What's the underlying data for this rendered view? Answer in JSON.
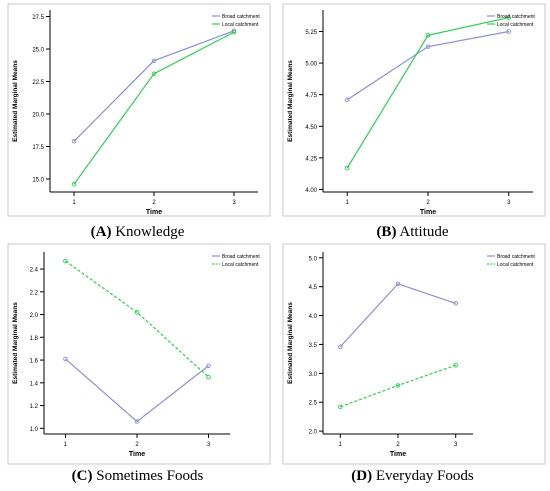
{
  "colors": {
    "broad": "#8a8fd6",
    "local": "#2ecf4f",
    "axis": "#000000",
    "frame": "#c8c8c8"
  },
  "captions": [
    {
      "letter": "(A)",
      "text": "Knowledge"
    },
    {
      "letter": "(B)",
      "text": "Attitude"
    },
    {
      "letter": "(C)",
      "text": "Sometimes Foods"
    },
    {
      "letter": "(D)",
      "text": "Everyday Foods"
    }
  ],
  "chart_data": [
    {
      "type": "line",
      "panel": "A",
      "xlabel": "Time",
      "ylabel": "Estimated Marginal Means",
      "x": [
        1,
        2,
        3
      ],
      "xlim": [
        0.7,
        3.3
      ],
      "ylim": [
        14.0,
        28.0
      ],
      "yticks": [
        "15.0",
        "17.5",
        "20.0",
        "22.5",
        "25.0",
        "27.5"
      ],
      "ytick_values": [
        15.0,
        17.5,
        20.0,
        22.5,
        25.0,
        27.5
      ],
      "legend": "top-right",
      "series": [
        {
          "name": "Broad catchment",
          "values": [
            17.9,
            24.1,
            26.4
          ],
          "style": "solid",
          "color": "broad"
        },
        {
          "name": "Local catchment",
          "values": [
            14.6,
            23.1,
            26.3
          ],
          "style": "solid",
          "color": "local"
        }
      ]
    },
    {
      "type": "line",
      "panel": "B",
      "xlabel": "Time",
      "ylabel": "Estimated Marginal Means",
      "x": [
        1,
        2,
        3
      ],
      "xlim": [
        0.7,
        3.3
      ],
      "ylim": [
        3.98,
        5.42
      ],
      "yticks": [
        "4.00",
        "4.25",
        "4.50",
        "4.75",
        "5.00",
        "5.25"
      ],
      "ytick_values": [
        4.0,
        4.25,
        4.5,
        4.75,
        5.0,
        5.25
      ],
      "legend": "top-right",
      "series": [
        {
          "name": "Broad catchment",
          "values": [
            4.71,
            5.13,
            5.25
          ],
          "style": "solid",
          "color": "broad"
        },
        {
          "name": "Local catchment",
          "values": [
            4.17,
            5.22,
            5.36
          ],
          "style": "solid",
          "color": "local"
        }
      ]
    },
    {
      "type": "line",
      "panel": "C",
      "xlabel": "Time",
      "ylabel": "Estimated Marginal Means",
      "x": [
        1,
        2,
        3
      ],
      "xlim": [
        0.7,
        3.3
      ],
      "ylim": [
        0.95,
        2.55
      ],
      "yticks": [
        "1.0",
        "1.2",
        "1.4",
        "1.6",
        "1.8",
        "2.0",
        "2.2",
        "2.4"
      ],
      "ytick_values": [
        1.0,
        1.2,
        1.4,
        1.6,
        1.8,
        2.0,
        2.2,
        2.4
      ],
      "legend": "top-right",
      "series": [
        {
          "name": "Broad catchment",
          "values": [
            1.61,
            1.06,
            1.55
          ],
          "style": "solid",
          "color": "broad"
        },
        {
          "name": "Local catchment",
          "values": [
            2.47,
            2.02,
            1.45
          ],
          "style": "dashed",
          "color": "local"
        }
      ]
    },
    {
      "type": "line",
      "panel": "D",
      "xlabel": "Time",
      "ylabel": "Estimated Marginal Means",
      "x": [
        1,
        2,
        3
      ],
      "xlim": [
        0.7,
        3.3
      ],
      "ylim": [
        1.95,
        5.1
      ],
      "yticks": [
        "2.0",
        "2.5",
        "3.0",
        "3.5",
        "4.0",
        "4.5",
        "5.0"
      ],
      "ytick_values": [
        2.0,
        2.5,
        3.0,
        3.5,
        4.0,
        4.5,
        5.0
      ],
      "legend": "top-right",
      "series": [
        {
          "name": "Broad catchment",
          "values": [
            3.46,
            4.55,
            4.21
          ],
          "style": "solid",
          "color": "broad"
        },
        {
          "name": "Local catchment",
          "values": [
            2.42,
            2.79,
            3.14
          ],
          "style": "dashed",
          "color": "local"
        }
      ]
    }
  ]
}
